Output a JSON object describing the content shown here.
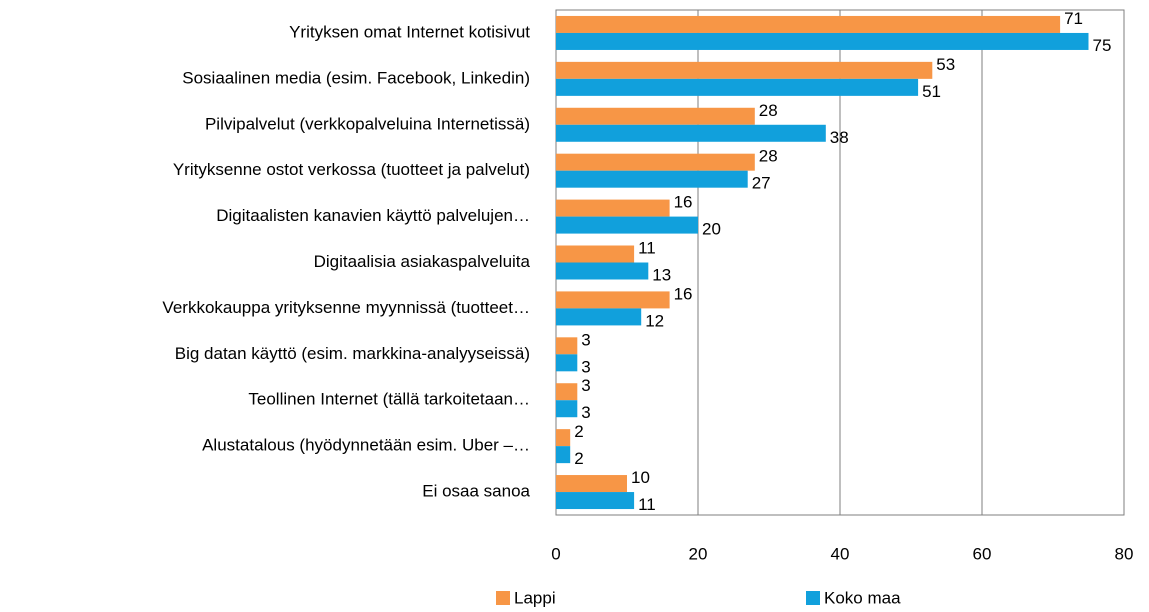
{
  "chart_data": {
    "type": "bar",
    "orientation": "horizontal",
    "categories": [
      "Yrityksen omat Internet kotisivut",
      "Sosiaalinen media (esim. Facebook, Linkedin)",
      "Pilvipalvelut  (verkkopalveluina Internetissä)",
      "Yrityksenne ostot verkossa (tuotteet ja palvelut)",
      "Digitaalisten kanavien käyttö palvelujen…",
      "Digitaalisia asiakaspalveluita",
      "Verkkokauppa yrityksenne myynnissä (tuotteet…",
      "Big datan käyttö (esim. markkina-analyyseissä)",
      "Teollinen Internet (tällä tarkoitetaan…",
      "Alustatalous (hyödynnetään esim. Uber –…",
      "Ei osaa sanoa"
    ],
    "series": [
      {
        "name": "Lappi",
        "color": "#f79646",
        "values": [
          71,
          53,
          28,
          28,
          16,
          11,
          16,
          3,
          3,
          2,
          10
        ]
      },
      {
        "name": "Koko maa",
        "color": "#11a0dc",
        "values": [
          75,
          51,
          38,
          27,
          20,
          13,
          12,
          3,
          3,
          2,
          11
        ]
      }
    ],
    "xlim": [
      0,
      80
    ],
    "xticks": [
      0,
      20,
      40,
      60,
      80
    ],
    "grid": true,
    "legend": "bottom"
  }
}
